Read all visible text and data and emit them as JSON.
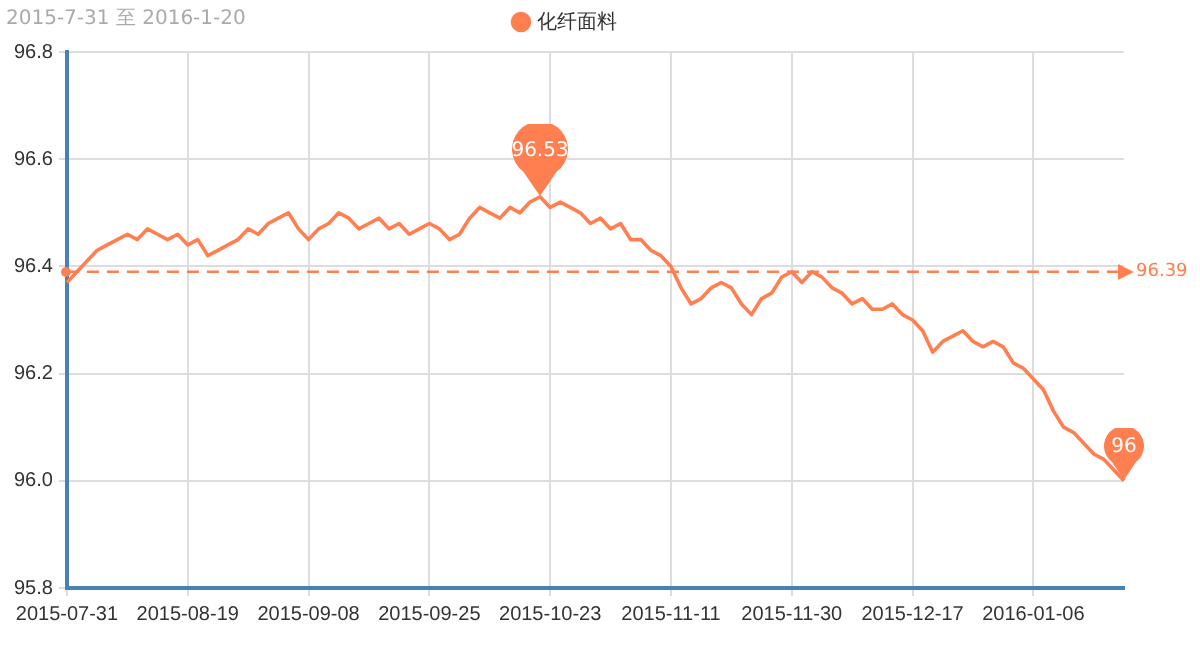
{
  "chart_data": {
    "type": "line",
    "title": "2015-7-31 至 2016-1-20",
    "categories": [
      "2015-07-31",
      null,
      null,
      null,
      null,
      null,
      null,
      null,
      null,
      null,
      null,
      null,
      "2015-08-19",
      null,
      null,
      null,
      null,
      null,
      null,
      null,
      null,
      null,
      null,
      null,
      "2015-09-08",
      null,
      null,
      null,
      null,
      null,
      null,
      null,
      null,
      null,
      null,
      null,
      "2015-09-25",
      null,
      null,
      null,
      null,
      null,
      null,
      null,
      null,
      null,
      null,
      null,
      "2015-10-23",
      null,
      null,
      null,
      null,
      null,
      null,
      null,
      null,
      null,
      null,
      null,
      "2015-11-11",
      null,
      null,
      null,
      null,
      null,
      null,
      null,
      null,
      null,
      null,
      null,
      "2015-11-30",
      null,
      null,
      null,
      null,
      null,
      null,
      null,
      null,
      null,
      null,
      null,
      "2015-12-17",
      null,
      null,
      null,
      null,
      null,
      null,
      null,
      null,
      null,
      null,
      null,
      "2016-01-06",
      null,
      null,
      null,
      null,
      null,
      null,
      null,
      null,
      null
    ],
    "series": [
      {
        "name": "化纤面料",
        "color": "#ff7f50",
        "values": [
          96.37,
          96.39,
          96.41,
          96.43,
          96.44,
          96.45,
          96.46,
          96.45,
          96.47,
          96.46,
          96.45,
          96.46,
          96.44,
          96.45,
          96.42,
          96.43,
          96.44,
          96.45,
          96.47,
          96.46,
          96.48,
          96.49,
          96.5,
          96.47,
          96.45,
          96.47,
          96.48,
          96.5,
          96.49,
          96.47,
          96.48,
          96.49,
          96.47,
          96.48,
          96.46,
          96.47,
          96.48,
          96.47,
          96.45,
          96.46,
          96.49,
          96.51,
          96.5,
          96.49,
          96.51,
          96.5,
          96.52,
          96.53,
          96.51,
          96.52,
          96.51,
          96.5,
          96.48,
          96.49,
          96.47,
          96.48,
          96.45,
          96.45,
          96.43,
          96.42,
          96.4,
          96.36,
          96.33,
          96.34,
          96.36,
          96.37,
          96.36,
          96.33,
          96.31,
          96.34,
          96.35,
          96.38,
          96.39,
          96.37,
          96.39,
          96.38,
          96.36,
          96.35,
          96.33,
          96.34,
          96.32,
          96.32,
          96.33,
          96.31,
          96.3,
          96.28,
          96.24,
          96.26,
          96.27,
          96.28,
          96.26,
          96.25,
          96.26,
          96.25,
          96.22,
          96.21,
          96.19,
          96.17,
          96.13,
          96.1,
          96.09,
          96.07,
          96.05,
          96.04,
          96.02,
          96.0
        ],
        "value_labels": [
          null,
          null,
          null,
          null,
          null,
          null,
          null,
          null,
          null,
          null,
          null,
          null,
          null,
          null,
          null,
          null,
          null,
          null,
          null,
          null,
          null,
          null,
          null,
          null,
          null,
          null,
          null,
          null,
          null,
          null,
          null,
          null,
          null,
          null,
          null,
          null,
          null,
          null,
          null,
          null,
          null,
          null,
          null,
          null,
          null,
          null,
          null,
          "96.53",
          null,
          null,
          null,
          null,
          null,
          null,
          null,
          null,
          null,
          null,
          null,
          null,
          null,
          null,
          null,
          null,
          null,
          null,
          null,
          null,
          null,
          null,
          null,
          null,
          null,
          null,
          null,
          null,
          null,
          null,
          null,
          null,
          null,
          null,
          null,
          null,
          null,
          null,
          null,
          null,
          null,
          null,
          null,
          null,
          null,
          null,
          null,
          null,
          null,
          null,
          null,
          null,
          null,
          null,
          null,
          null,
          null,
          "96"
        ]
      }
    ],
    "ylim": [
      95.8,
      96.8
    ],
    "yticks": [
      95.8,
      {
        "value": 96,
        "label": "96.0"
      },
      96.2,
      96.4,
      96.6,
      96.8
    ],
    "ref_lines": [
      {
        "axis": "y",
        "value": 96.39,
        "label": "96.39",
        "color": "#ff7f50",
        "line_style": "dashed"
      }
    ],
    "grid": true,
    "legend": "top",
    "marker": "none",
    "line_style": "solid"
  }
}
